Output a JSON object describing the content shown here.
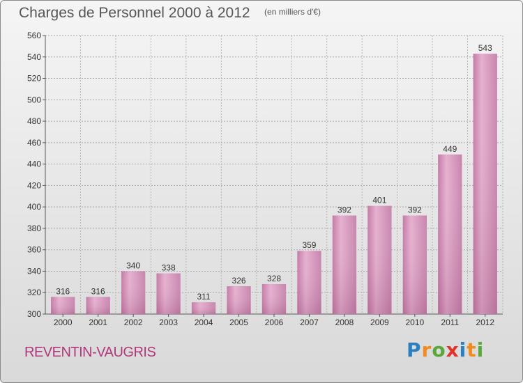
{
  "title": "Charges de Personnel 2000 à 2012",
  "subtitle": "(en milliers d'€)",
  "place_name": "REVENTIN-VAUGRIS",
  "logo": {
    "letters": [
      "P",
      "r",
      "o",
      "x",
      "i",
      "t",
      "i"
    ],
    "colors": [
      "#2a7fc1",
      "#f28c1e",
      "#5aa83a",
      "#e2332a",
      "#2a7fc1",
      "#f28c1e",
      "#5aa83a"
    ]
  },
  "colors": {
    "bar_light": "#eab7d5",
    "bar_mid": "#d38bb8",
    "bar_dark": "#b36d98"
  },
  "chart_data": {
    "type": "bar",
    "categories": [
      "2000",
      "2001",
      "2002",
      "2003",
      "2004",
      "2005",
      "2006",
      "2007",
      "2008",
      "2009",
      "2010",
      "2011",
      "2012"
    ],
    "values": [
      316,
      316,
      340,
      338,
      311,
      326,
      328,
      359,
      392,
      401,
      392,
      449,
      543
    ],
    "ylim": [
      300,
      560
    ],
    "yticks": [
      300,
      320,
      340,
      360,
      380,
      400,
      420,
      440,
      460,
      480,
      500,
      520,
      540,
      560
    ],
    "grid": true,
    "xlabel": "",
    "ylabel": ""
  }
}
